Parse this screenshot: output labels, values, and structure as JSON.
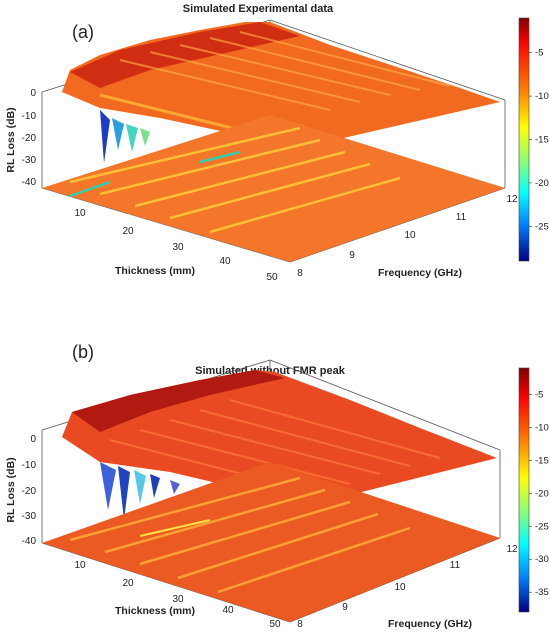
{
  "chart_data": [
    {
      "type": "surface",
      "panel_label": "(a)",
      "title": "Simulated Experimental data",
      "xlabel": "Thickness (mm)",
      "ylabel": "Frequency (GHz)",
      "zlabel": "RL Loss (dB)",
      "x_ticks": [
        "10",
        "20",
        "30",
        "40",
        "50"
      ],
      "y_ticks": [
        "8",
        "9",
        "10",
        "11",
        "12"
      ],
      "z_ticks": [
        "0",
        "-10",
        "-20",
        "-30",
        "-40"
      ],
      "colorbar_ticks": [
        "-5",
        "-10",
        "-15",
        "-20",
        "-25"
      ],
      "colorbar_range": [
        -29,
        -1
      ],
      "colormap": "jet",
      "xlim": [
        5,
        50
      ],
      "ylim": [
        8,
        12
      ],
      "zlim": [
        -45,
        0
      ],
      "contour_projection": "bottom"
    },
    {
      "type": "surface",
      "panel_label": "(b)",
      "title": "Simulated without FMR peak",
      "xlabel": "Thickness (mm)",
      "ylabel": "Frequency (GHz)",
      "zlabel": "RL Loss (dB)",
      "x_ticks": [
        "10",
        "20",
        "30",
        "40",
        "50"
      ],
      "y_ticks": [
        "8",
        "9",
        "10",
        "11",
        "12"
      ],
      "z_ticks": [
        "0",
        "-10",
        "-20",
        "-30",
        "-40"
      ],
      "colorbar_ticks": [
        "-5",
        "-10",
        "-15",
        "-20",
        "-25",
        "-30",
        "-35"
      ],
      "colorbar_range": [
        -38,
        -1
      ],
      "colormap": "jet",
      "xlim": [
        5,
        50
      ],
      "ylim": [
        8,
        12
      ],
      "zlim": [
        -45,
        0
      ],
      "contour_projection": "bottom"
    }
  ]
}
